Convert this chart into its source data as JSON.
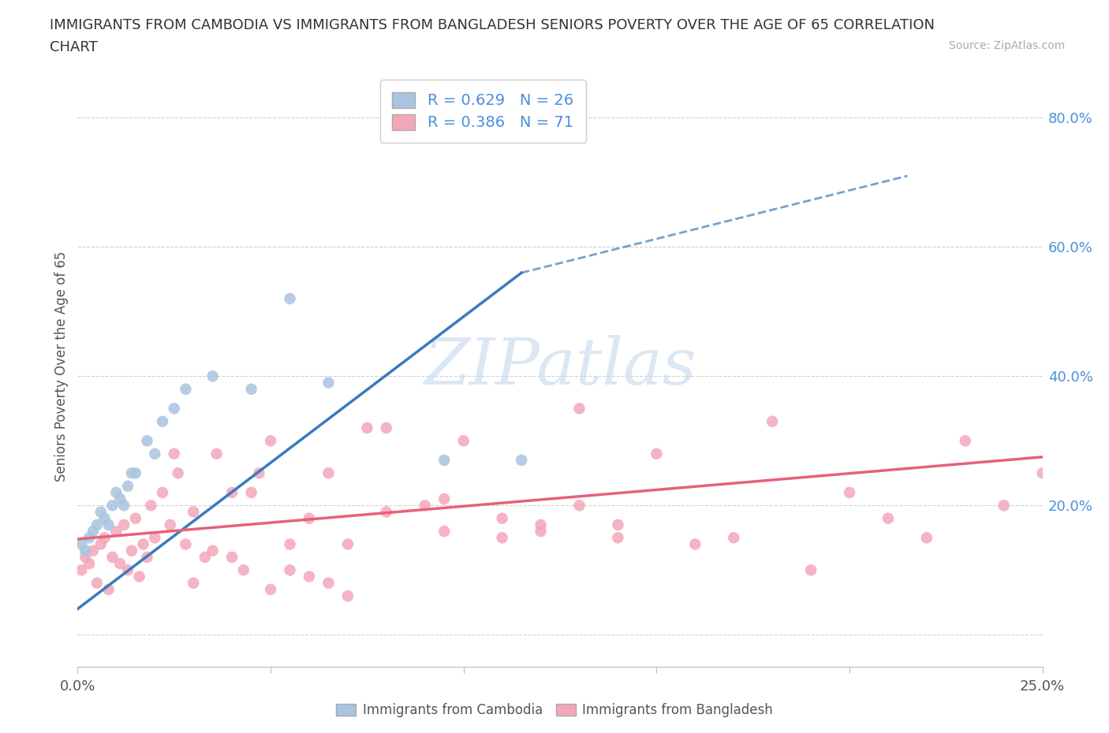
{
  "title_line1": "IMMIGRANTS FROM CAMBODIA VS IMMIGRANTS FROM BANGLADESH SENIORS POVERTY OVER THE AGE OF 65 CORRELATION",
  "title_line2": "CHART",
  "source_text": "Source: ZipAtlas.com",
  "ylabel": "Seniors Poverty Over the Age of 65",
  "xlim": [
    0.0,
    0.25
  ],
  "ylim": [
    -0.05,
    0.88
  ],
  "R_cambodia": 0.629,
  "N_cambodia": 26,
  "R_bangladesh": 0.386,
  "N_bangladesh": 71,
  "color_cambodia": "#a8c4e0",
  "color_bangladesh": "#f4a7b9",
  "line_color_cambodia": "#3a7abf",
  "line_color_bangladesh": "#e8607a",
  "watermark_text": "ZIPatlas",
  "watermark_color": "#c5d8ee",
  "line_cambodia_x0": 0.0,
  "line_cambodia_y0": 0.04,
  "line_cambodia_x1": 0.115,
  "line_cambodia_y1": 0.56,
  "line_cambodia_dash_x1": 0.215,
  "line_cambodia_dash_y1": 0.71,
  "line_bangladesh_x0": 0.0,
  "line_bangladesh_y0": 0.148,
  "line_bangladesh_x1": 0.25,
  "line_bangladesh_y1": 0.275,
  "cambodia_x": [
    0.001,
    0.002,
    0.003,
    0.004,
    0.005,
    0.006,
    0.007,
    0.008,
    0.009,
    0.01,
    0.011,
    0.012,
    0.013,
    0.014,
    0.015,
    0.018,
    0.02,
    0.022,
    0.025,
    0.028,
    0.035,
    0.045,
    0.055,
    0.065,
    0.095,
    0.115
  ],
  "cambodia_y": [
    0.14,
    0.13,
    0.15,
    0.16,
    0.17,
    0.19,
    0.18,
    0.17,
    0.2,
    0.22,
    0.21,
    0.2,
    0.23,
    0.25,
    0.25,
    0.3,
    0.28,
    0.33,
    0.35,
    0.38,
    0.4,
    0.38,
    0.52,
    0.39,
    0.27,
    0.27
  ],
  "bangladesh_x": [
    0.001,
    0.002,
    0.003,
    0.004,
    0.005,
    0.006,
    0.007,
    0.008,
    0.009,
    0.01,
    0.011,
    0.012,
    0.013,
    0.014,
    0.015,
    0.016,
    0.017,
    0.018,
    0.019,
    0.02,
    0.022,
    0.024,
    0.026,
    0.028,
    0.03,
    0.033,
    0.036,
    0.04,
    0.043,
    0.047,
    0.05,
    0.055,
    0.06,
    0.065,
    0.07,
    0.075,
    0.08,
    0.09,
    0.095,
    0.1,
    0.11,
    0.12,
    0.13,
    0.14,
    0.15,
    0.16,
    0.17,
    0.18,
    0.19,
    0.2,
    0.21,
    0.22,
    0.23,
    0.24,
    0.25,
    0.13,
    0.14,
    0.08,
    0.095,
    0.11,
    0.12,
    0.03,
    0.04,
    0.05,
    0.06,
    0.07,
    0.025,
    0.035,
    0.045,
    0.055,
    0.065
  ],
  "bangladesh_y": [
    0.1,
    0.12,
    0.11,
    0.13,
    0.08,
    0.14,
    0.15,
    0.07,
    0.12,
    0.16,
    0.11,
    0.17,
    0.1,
    0.13,
    0.18,
    0.09,
    0.14,
    0.12,
    0.2,
    0.15,
    0.22,
    0.17,
    0.25,
    0.14,
    0.19,
    0.12,
    0.28,
    0.22,
    0.1,
    0.25,
    0.3,
    0.14,
    0.18,
    0.25,
    0.14,
    0.32,
    0.19,
    0.2,
    0.16,
    0.3,
    0.15,
    0.17,
    0.2,
    0.15,
    0.28,
    0.14,
    0.15,
    0.33,
    0.1,
    0.22,
    0.18,
    0.15,
    0.3,
    0.2,
    0.25,
    0.35,
    0.17,
    0.32,
    0.21,
    0.18,
    0.16,
    0.08,
    0.12,
    0.07,
    0.09,
    0.06,
    0.28,
    0.13,
    0.22,
    0.1,
    0.08
  ]
}
